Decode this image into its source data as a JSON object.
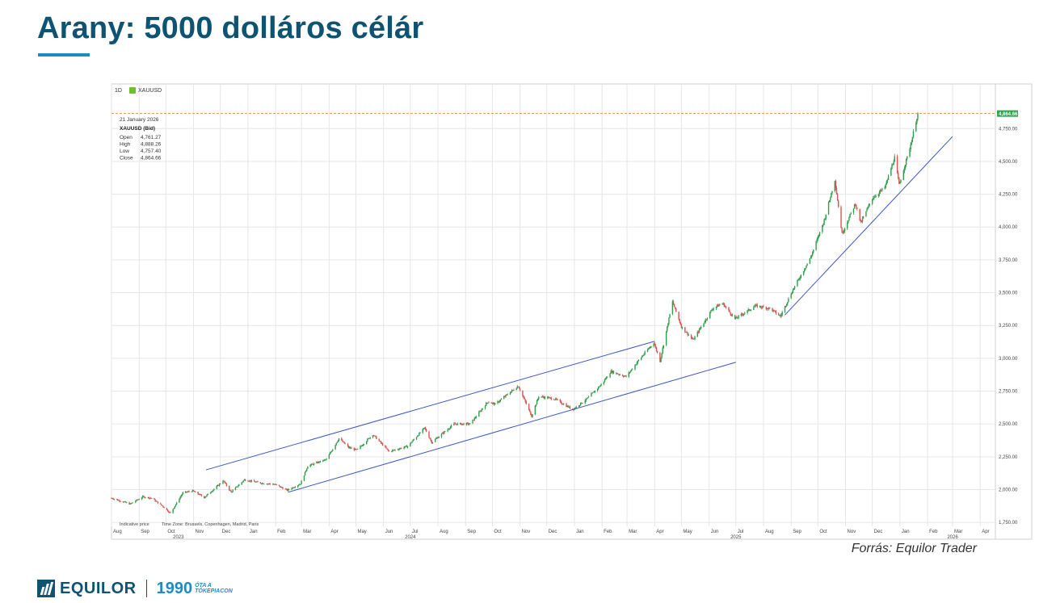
{
  "page": {
    "title": "Arany: 5000 dolláros célár",
    "source": "Forrás: Equilor Trader",
    "footer": {
      "brand": "EQUILOR",
      "year": "1990",
      "tag_line1": "ÓTA A",
      "tag_line2": "TŐKEPIACON"
    }
  },
  "chart_data": {
    "type": "candlestick",
    "instrument": "XAUUSD",
    "interval": "1D",
    "info": {
      "date": "21 January 2026",
      "series": "XAUUSD (Bid)",
      "rows": [
        {
          "label": "Open",
          "value": "4,761.27"
        },
        {
          "label": "High",
          "value": "4,888.26"
        },
        {
          "label": "Low",
          "value": "4,757.40"
        },
        {
          "label": "Close",
          "value": "4,864.66"
        }
      ]
    },
    "last_price": 4864.66,
    "last_price_label": "4,864.66",
    "y_range": [
      1720,
      5090
    ],
    "y_ticks": [
      1750,
      2000,
      2250,
      2500,
      2750,
      3000,
      3250,
      3500,
      3750,
      4000,
      4250,
      4500,
      4750
    ],
    "y_tick_labels": [
      "1,750.00",
      "2,000.00",
      "2,250.00",
      "2,500.00",
      "2,750.00",
      "3,000.00",
      "3,250.00",
      "3,500.00",
      "3,750.00",
      "4,000.00",
      "4,250.00",
      "4,500.00",
      "4,750.00"
    ],
    "x_range": [
      "2023-08-01",
      "2026-04-18"
    ],
    "x_months": [
      {
        "label": "Aug",
        "date": "2023-08-01"
      },
      {
        "label": "Sep",
        "date": "2023-09-01"
      },
      {
        "label": "Oct",
        "date": "2023-10-01"
      },
      {
        "label": "Nov",
        "date": "2023-11-01"
      },
      {
        "label": "Dec",
        "date": "2023-12-01"
      },
      {
        "label": "Jan",
        "date": "2024-01-01"
      },
      {
        "label": "Feb",
        "date": "2024-02-01"
      },
      {
        "label": "Mar",
        "date": "2024-03-01"
      },
      {
        "label": "Apr",
        "date": "2024-04-01"
      },
      {
        "label": "May",
        "date": "2024-05-01"
      },
      {
        "label": "Jun",
        "date": "2024-06-01"
      },
      {
        "label": "Jul",
        "date": "2024-07-01"
      },
      {
        "label": "Aug",
        "date": "2024-08-01"
      },
      {
        "label": "Sep",
        "date": "2024-09-01"
      },
      {
        "label": "Oct",
        "date": "2024-10-01"
      },
      {
        "label": "Nov",
        "date": "2024-11-01"
      },
      {
        "label": "Dec",
        "date": "2024-12-01"
      },
      {
        "label": "Jan",
        "date": "2025-01-01"
      },
      {
        "label": "Feb",
        "date": "2025-02-01"
      },
      {
        "label": "Mar",
        "date": "2025-03-01"
      },
      {
        "label": "Apr",
        "date": "2025-04-01"
      },
      {
        "label": "May",
        "date": "2025-05-01"
      },
      {
        "label": "Jun",
        "date": "2025-06-01"
      },
      {
        "label": "Jul",
        "date": "2025-07-01"
      },
      {
        "label": "Aug",
        "date": "2025-08-01"
      },
      {
        "label": "Sep",
        "date": "2025-09-01"
      },
      {
        "label": "Oct",
        "date": "2025-10-01"
      },
      {
        "label": "Nov",
        "date": "2025-11-01"
      },
      {
        "label": "Dec",
        "date": "2025-12-01"
      },
      {
        "label": "Jan",
        "date": "2026-01-01"
      },
      {
        "label": "Feb",
        "date": "2026-02-01"
      },
      {
        "label": "Mar",
        "date": "2026-03-01"
      },
      {
        "label": "Apr",
        "date": "2026-04-01"
      }
    ],
    "x_years": [
      {
        "label": "2023",
        "date": "2023-10-15"
      },
      {
        "label": "2024",
        "date": "2024-07-01"
      },
      {
        "label": "2025",
        "date": "2025-07-01"
      },
      {
        "label": "2026",
        "date": "2026-03-01"
      }
    ],
    "close_path": [
      [
        "2023-08-01",
        1935
      ],
      [
        "2023-08-22",
        1890
      ],
      [
        "2023-09-05",
        1945
      ],
      [
        "2023-09-15",
        1935
      ],
      [
        "2023-09-28",
        1870
      ],
      [
        "2023-10-06",
        1820
      ],
      [
        "2023-10-20",
        1975
      ],
      [
        "2023-10-31",
        1990
      ],
      [
        "2023-11-13",
        1940
      ],
      [
        "2023-11-30",
        2040
      ],
      [
        "2023-12-04",
        2070
      ],
      [
        "2023-12-13",
        1980
      ],
      [
        "2023-12-28",
        2075
      ],
      [
        "2024-01-15",
        2050
      ],
      [
        "2024-01-31",
        2040
      ],
      [
        "2024-02-14",
        1995
      ],
      [
        "2024-02-29",
        2045
      ],
      [
        "2024-03-08",
        2180
      ],
      [
        "2024-03-29",
        2230
      ],
      [
        "2024-04-12",
        2390
      ],
      [
        "2024-04-23",
        2320
      ],
      [
        "2024-05-02",
        2300
      ],
      [
        "2024-05-20",
        2420
      ],
      [
        "2024-06-07",
        2290
      ],
      [
        "2024-06-28",
        2330
      ],
      [
        "2024-07-17",
        2470
      ],
      [
        "2024-07-25",
        2360
      ],
      [
        "2024-08-19",
        2500
      ],
      [
        "2024-09-06",
        2500
      ],
      [
        "2024-09-26",
        2670
      ],
      [
        "2024-10-04",
        2650
      ],
      [
        "2024-10-30",
        2790
      ],
      [
        "2024-11-14",
        2560
      ],
      [
        "2024-11-22",
        2710
      ],
      [
        "2024-12-10",
        2690
      ],
      [
        "2024-12-30",
        2610
      ],
      [
        "2025-01-15",
        2690
      ],
      [
        "2025-01-31",
        2800
      ],
      [
        "2025-02-11",
        2900
      ],
      [
        "2025-02-28",
        2860
      ],
      [
        "2025-03-14",
        2985
      ],
      [
        "2025-03-31",
        3120
      ],
      [
        "2025-04-07",
        2980
      ],
      [
        "2025-04-21",
        3430
      ],
      [
        "2025-05-01",
        3240
      ],
      [
        "2025-05-14",
        3140
      ],
      [
        "2025-06-05",
        3380
      ],
      [
        "2025-06-16",
        3420
      ],
      [
        "2025-06-30",
        3300
      ],
      [
        "2025-07-23",
        3400
      ],
      [
        "2025-08-08",
        3380
      ],
      [
        "2025-08-20",
        3320
      ],
      [
        "2025-09-02",
        3510
      ],
      [
        "2025-09-23",
        3770
      ],
      [
        "2025-10-08",
        4050
      ],
      [
        "2025-10-20",
        4360
      ],
      [
        "2025-10-28",
        3950
      ],
      [
        "2025-11-12",
        4180
      ],
      [
        "2025-11-18",
        4030
      ],
      [
        "2025-12-01",
        4220
      ],
      [
        "2025-12-15",
        4300
      ],
      [
        "2025-12-26",
        4530
      ],
      [
        "2025-12-31",
        4320
      ],
      [
        "2026-01-12",
        4600
      ],
      [
        "2026-01-21",
        4864
      ]
    ],
    "trendlines": [
      {
        "name": "channel-upper",
        "from": [
          "2023-11-15",
          2150
        ],
        "to": [
          "2025-04-01",
          3130
        ],
        "color": "#3b56c8"
      },
      {
        "name": "channel-lower",
        "from": [
          "2024-02-15",
          1980
        ],
        "to": [
          "2025-07-01",
          2970
        ],
        "color": "#3b56c8"
      },
      {
        "name": "support",
        "from": [
          "2025-08-25",
          3330
        ],
        "to": [
          "2026-03-01",
          4690
        ],
        "color": "#3b56c8"
      }
    ],
    "footnote_left": "Indicative price",
    "footnote_tz": "Time Zone: Brussels, Copenhagen, Madrid, Paris",
    "colors": {
      "up": "#2e9d4a",
      "down": "#d9534f",
      "trend": "#3b56c8",
      "last": "#e8743b",
      "badge": "#28a745",
      "grid": "#e6e6e6"
    }
  }
}
